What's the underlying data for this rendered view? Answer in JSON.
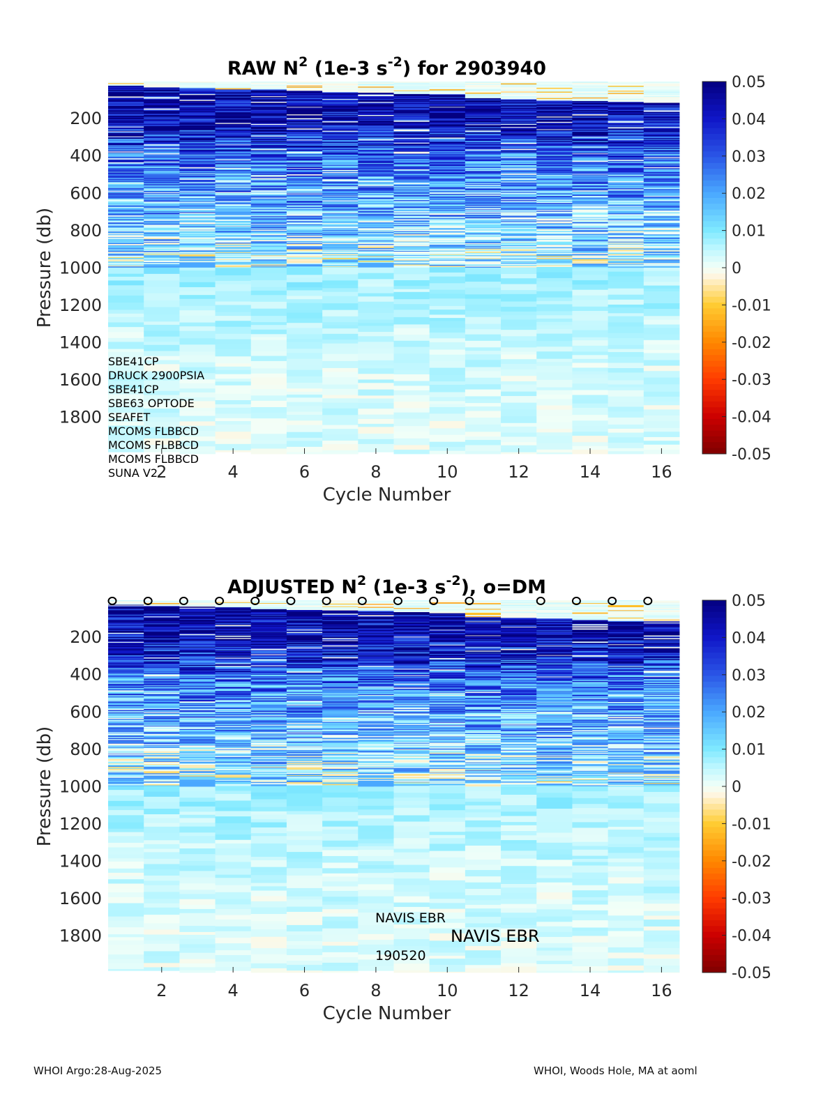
{
  "footer": {
    "left": "WHOI Argo:28-Aug-2025",
    "right": "WHOI, Woods Hole, MA at aoml"
  },
  "colormap_stops": [
    [
      "#7f0000",
      -0.05
    ],
    [
      "#cc0000",
      -0.04
    ],
    [
      "#ff3c00",
      -0.03
    ],
    [
      "#ff8800",
      -0.02
    ],
    [
      "#ffcc33",
      -0.01
    ],
    [
      "#fff4dd",
      -0.0025
    ],
    [
      "#f2fff8",
      0.0
    ],
    [
      "#bff7ff",
      0.005
    ],
    [
      "#7fe9ff",
      0.01
    ],
    [
      "#4aa8ff",
      0.02
    ],
    [
      "#2a55e6",
      0.03
    ],
    [
      "#1016c8",
      0.04
    ],
    [
      "#040080",
      0.05
    ]
  ],
  "chart_data": [
    {
      "type": "heatmap",
      "title_parts": {
        "pre": "RAW N",
        "sup1": "2",
        "mid": " (1e-3 s",
        "sup2": "-2",
        "post": ") for 2903940"
      },
      "xlabel": "Cycle Number",
      "ylabel": "Pressure (db)",
      "x_ticks": [
        "2",
        "4",
        "6",
        "8",
        "10",
        "12",
        "14",
        "16"
      ],
      "y_ticks": [
        "200",
        "400",
        "600",
        "800",
        "1000",
        "1200",
        "1400",
        "1600",
        "1800"
      ],
      "x_range": [
        1,
        16
      ],
      "y_range": [
        5,
        2000
      ],
      "colorbar": {
        "range": [
          -0.05,
          0.05
        ],
        "tick_labels": [
          "0.05",
          "0.04",
          "0.03",
          "0.02",
          "0.01",
          "0",
          "-0.01",
          "-0.02",
          "-0.03",
          "-0.04",
          "-0.05"
        ]
      },
      "cycles": [
        1,
        2,
        3,
        4,
        5,
        6,
        7,
        8,
        9,
        10,
        11,
        12,
        13,
        14,
        15,
        16
      ],
      "profile_max_pressure": [
        1990,
        1990,
        2000,
        1990,
        2000,
        2000,
        2000,
        1990,
        2000,
        2000,
        2000,
        2000,
        2000,
        2000,
        2000,
        2000
      ],
      "dm_marks": [],
      "annotations": [
        "SBE41CP",
        "DRUCK 2900PSIA",
        "SBE41CP",
        "SBE63 OPTODE",
        "SEAFET",
        "MCOMS FLBBCD",
        "MCOMS FLBBCD",
        "MCOMS FLBBCD",
        "SUNA V2"
      ]
    },
    {
      "type": "heatmap",
      "title_parts": {
        "pre": "ADJUSTED N",
        "sup1": "2",
        "mid": " (1e-3 s",
        "sup2": "-2",
        "post": "), o=DM"
      },
      "xlabel": "Cycle Number",
      "ylabel": "Pressure (db)",
      "x_ticks": [
        "2",
        "4",
        "6",
        "8",
        "10",
        "12",
        "14",
        "16"
      ],
      "y_ticks": [
        "200",
        "400",
        "600",
        "800",
        "1000",
        "1200",
        "1400",
        "1600",
        "1800"
      ],
      "x_range": [
        1,
        16
      ],
      "y_range": [
        5,
        2000
      ],
      "colorbar": {
        "range": [
          -0.05,
          0.05
        ],
        "tick_labels": [
          "0.05",
          "0.04",
          "0.03",
          "0.02",
          "0.01",
          "0",
          "-0.01",
          "-0.02",
          "-0.03",
          "-0.04",
          "-0.05"
        ]
      },
      "cycles": [
        1,
        2,
        3,
        4,
        5,
        6,
        7,
        8,
        9,
        10,
        11,
        12,
        13,
        14,
        15,
        16
      ],
      "profile_max_pressure": [
        1990,
        1990,
        2000,
        1990,
        2000,
        2000,
        2000,
        1990,
        2000,
        2000,
        2000,
        2000,
        2000,
        2000,
        2000,
        2000
      ],
      "dm_marks": [
        1,
        2,
        3,
        4,
        5,
        6,
        7,
        8,
        9,
        10,
        11,
        13,
        14,
        15,
        16
      ],
      "dm_marker": "o",
      "annotations_small": [
        "NAVIS EBR",
        "190520"
      ],
      "annotation_large": "NAVIS EBR"
    }
  ]
}
